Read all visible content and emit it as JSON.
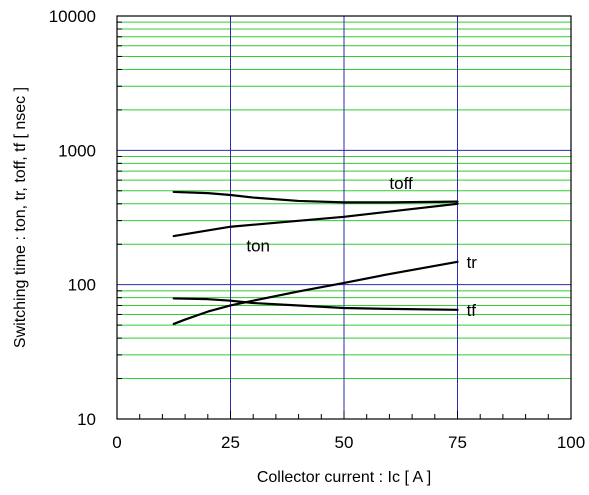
{
  "chart_data": {
    "type": "line",
    "xlabel": "Collector current : Ic [ A ]",
    "ylabel": "Switching time : ton, tr, toff, tf [ nsec ]",
    "xlim": [
      0,
      100
    ],
    "ylim": [
      10,
      10000
    ],
    "y_scale": "log",
    "x_ticks": [
      "0",
      "25",
      "50",
      "75",
      "100"
    ],
    "y_ticks": [
      "10",
      "100",
      "1000",
      "10000"
    ],
    "grid": {
      "major_color": "#2b2bb0",
      "minor_color": "#33cc33"
    },
    "series": [
      {
        "name": "toff",
        "x": [
          12.5,
          20,
          25,
          30,
          40,
          50,
          60,
          75
        ],
        "y": [
          490,
          480,
          465,
          445,
          420,
          410,
          410,
          415
        ]
      },
      {
        "name": "ton",
        "x": [
          12.5,
          25,
          50,
          75
        ],
        "y": [
          230,
          270,
          320,
          400
        ]
      },
      {
        "name": "tr",
        "x": [
          12.5,
          15,
          20,
          25,
          30,
          40,
          50,
          60,
          75
        ],
        "y": [
          51,
          55,
          63,
          70,
          76,
          89,
          103,
          120,
          148
        ]
      },
      {
        "name": "tf",
        "x": [
          12.5,
          20,
          25,
          30,
          40,
          50,
          60,
          75
        ],
        "y": [
          79,
          78,
          76,
          73,
          70,
          67,
          66,
          65
        ]
      }
    ],
    "curve_labels": [
      {
        "text": "toff",
        "x": 60,
        "y": 570
      },
      {
        "text": "ton",
        "x": 28.5,
        "y": 195
      },
      {
        "text": "tr",
        "x": 77,
        "y": 148
      },
      {
        "text": "tf",
        "x": 77,
        "y": 65
      }
    ]
  }
}
